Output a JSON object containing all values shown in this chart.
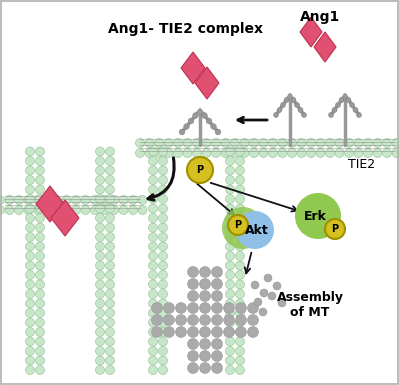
{
  "bg_color": "#ffffff",
  "border_color": "#b0b0b0",
  "membrane_color": "#c8e6c9",
  "membrane_outline": "#90c090",
  "receptor_color": "#999999",
  "diamond_color1": "#e05070",
  "diamond_color2": "#c03050",
  "phospho_color": "#d4c020",
  "phospho_border": "#a09000",
  "akt_color": "#90c0e8",
  "erk_color": "#90c850",
  "gray_color": "#aaaaaa",
  "gray_border": "#888888",
  "arrow_color": "#111111",
  "label_ang1": "Ang1",
  "label_tie2": "TIE2",
  "label_complex": "Ang1- TIE2 complex",
  "label_akt": "Akt",
  "label_erk": "Erk",
  "label_p": "P",
  "label_assembly": "Assembly\nof MT",
  "font_main": 9,
  "font_bold": 10,
  "font_p": 7
}
